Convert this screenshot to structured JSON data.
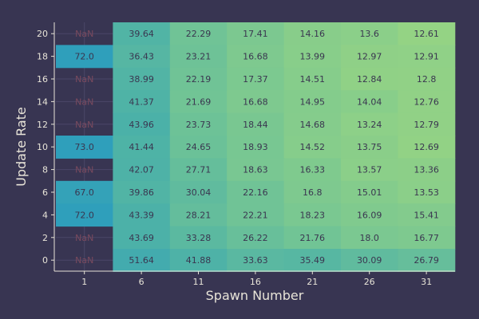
{
  "chart_data": {
    "type": "heatmap",
    "xlabel": "Spawn Number",
    "ylabel": "Update Rate",
    "x_categories": [
      "1",
      "6",
      "11",
      "16",
      "21",
      "26",
      "31"
    ],
    "y_categories": [
      "20",
      "18",
      "16",
      "14",
      "12",
      "10",
      "8",
      "6",
      "4",
      "2",
      "0"
    ],
    "missing_label": "NaN",
    "colormap": [
      "#2f9fbb",
      "#4fb3a6",
      "#74c594",
      "#95d384"
    ],
    "color_range": [
      12.6,
      72.0
    ],
    "value_labels": [
      [
        "NaN",
        "39.64",
        "22.29",
        "17.41",
        "14.16",
        "13.6",
        "12.61"
      ],
      [
        "72.0",
        "36.43",
        "23.21",
        "16.68",
        "13.99",
        "12.97",
        "12.91"
      ],
      [
        "NaN",
        "38.99",
        "22.19",
        "17.37",
        "14.51",
        "12.84",
        "12.8"
      ],
      [
        "NaN",
        "41.37",
        "21.69",
        "16.68",
        "14.95",
        "14.04",
        "12.76"
      ],
      [
        "NaN",
        "43.96",
        "23.73",
        "18.44",
        "14.68",
        "13.24",
        "12.79"
      ],
      [
        "73.0",
        "41.44",
        "24.65",
        "18.93",
        "14.52",
        "13.75",
        "12.69"
      ],
      [
        "NaN",
        "42.07",
        "27.71",
        "18.63",
        "16.33",
        "13.57",
        "13.36"
      ],
      [
        "67.0",
        "39.86",
        "30.04",
        "22.16",
        "16.8",
        "15.01",
        "13.53"
      ],
      [
        "72.0",
        "43.39",
        "28.21",
        "22.21",
        "18.23",
        "16.09",
        "15.41"
      ],
      [
        "NaN",
        "43.69",
        "33.28",
        "26.22",
        "21.76",
        "18.0",
        "16.77"
      ],
      [
        "NaN",
        "51.64",
        "41.88",
        "33.63",
        "35.49",
        "30.09",
        "26.79"
      ]
    ],
    "colors": {
      "background": "#383552",
      "grid": "#4a4768",
      "axis": "#e8e4d8",
      "text_on_cell": "#3a3650",
      "missing_text": "#7a4a5e"
    }
  }
}
